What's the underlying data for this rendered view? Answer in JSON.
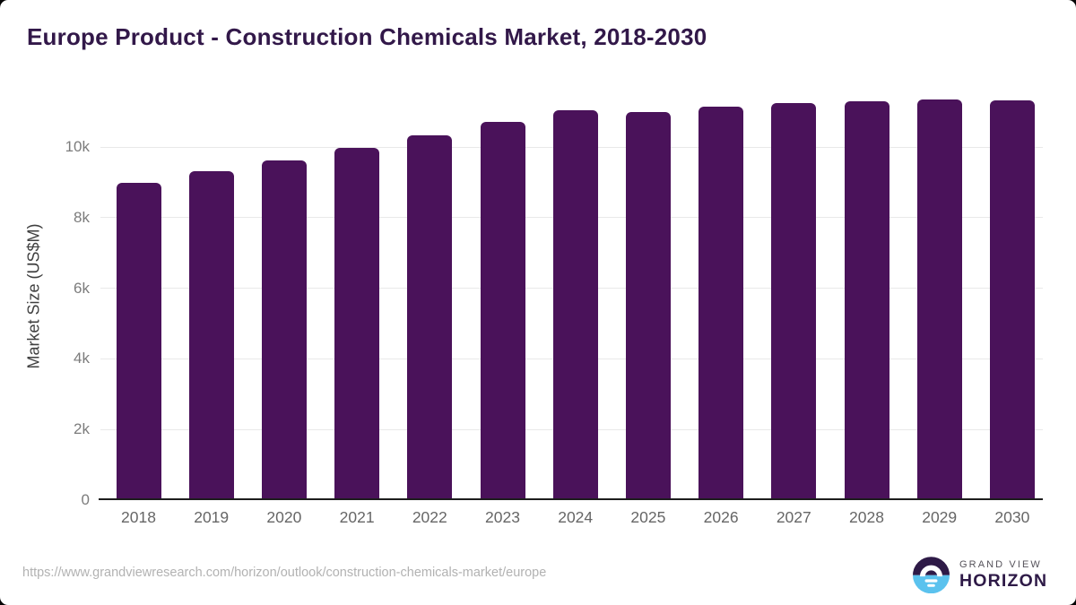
{
  "header": {
    "title": "Europe Product - Construction Chemicals Market, 2018-2030",
    "title_color": "#321849"
  },
  "chart_data": {
    "type": "bar",
    "categories": [
      "2018",
      "2019",
      "2020",
      "2021",
      "2022",
      "2023",
      "2024",
      "2025",
      "2026",
      "2027",
      "2028",
      "2029",
      "2030"
    ],
    "values": [
      8980,
      9310,
      9620,
      9970,
      10330,
      10700,
      11050,
      10980,
      11140,
      11240,
      11300,
      11350,
      11330
    ],
    "title": "Europe Product - Construction Chemicals Market, 2018-2030",
    "xlabel": "",
    "ylabel": "Market Size (US$M)",
    "ylim": [
      0,
      12000
    ],
    "yticks": [
      0,
      2000,
      4000,
      6000,
      8000,
      10000
    ],
    "ytick_labels": [
      "0",
      "2k",
      "4k",
      "6k",
      "8k",
      "10k"
    ],
    "grid": true,
    "legend_position": "none",
    "bar_color": "#4A125A",
    "gridline_color": "#e9e9e9",
    "axis_line_color": "#1d1d1d"
  },
  "footer": {
    "source_url": "https://www.grandviewresearch.com/horizon/outlook/construction-chemicals-market/europe",
    "logo": {
      "icon": "horizon-sunrise-icon",
      "brand_top": "GRAND VIEW",
      "brand_bottom": "HORIZON",
      "color_dark": "#2E1A47",
      "color_blue": "#5BC2EE"
    }
  }
}
